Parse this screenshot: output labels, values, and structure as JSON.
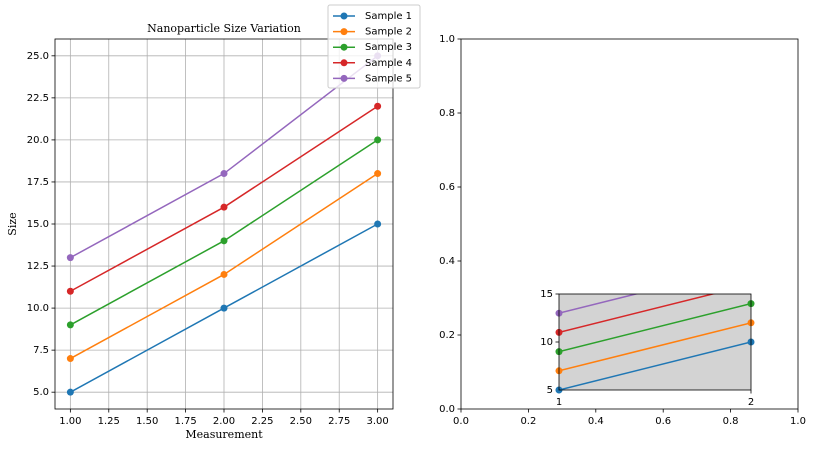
{
  "chart_data": [
    {
      "type": "line",
      "title": "Nanoparticle Size Variation",
      "x_label": "Measurement",
      "y_label": "Size",
      "x": [
        1,
        2,
        3
      ],
      "series": [
        {
          "name": "Sample 1",
          "color": "#1f77b4",
          "values": [
            5,
            10,
            15
          ]
        },
        {
          "name": "Sample 2",
          "color": "#ff7f0e",
          "values": [
            7,
            12,
            18
          ]
        },
        {
          "name": "Sample 3",
          "color": "#2ca02c",
          "values": [
            9,
            14,
            20
          ]
        },
        {
          "name": "Sample 4",
          "color": "#d62728",
          "values": [
            11,
            16,
            22
          ]
        },
        {
          "name": "Sample 5",
          "color": "#9467bd",
          "values": [
            13,
            18,
            25
          ]
        }
      ],
      "xlim": [
        0.9,
        3.1
      ],
      "xticks": [
        {
          "value": 1,
          "label": "1.00"
        },
        {
          "value": 1.25,
          "label": "1.25"
        },
        {
          "value": 1.5,
          "label": "1.50"
        },
        {
          "value": 1.75,
          "label": "1.75"
        },
        {
          "value": 2,
          "label": "2.00"
        },
        {
          "value": 2.25,
          "label": "2.25"
        },
        {
          "value": 2.5,
          "label": "2.50"
        },
        {
          "value": 2.75,
          "label": "2.75"
        },
        {
          "value": 3,
          "label": "3.00"
        }
      ],
      "ylim": [
        4,
        26
      ],
      "yticks": [
        {
          "value": 5,
          "label": "5.0"
        },
        {
          "value": 7.5,
          "label": "7.5"
        },
        {
          "value": 10,
          "label": "10.0"
        },
        {
          "value": 12.5,
          "label": "12.5"
        },
        {
          "value": 15,
          "label": "15.0"
        },
        {
          "value": 17.5,
          "label": "17.5"
        },
        {
          "value": 20,
          "label": "20.0"
        },
        {
          "value": 22.5,
          "label": "22.5"
        },
        {
          "value": 25,
          "label": "25.0"
        }
      ],
      "grid": true
    },
    {
      "type": "line",
      "xlim": [
        0,
        1
      ],
      "xticks": [
        {
          "value": 0,
          "label": "0.0"
        },
        {
          "value": 0.2,
          "label": "0.2"
        },
        {
          "value": 0.4,
          "label": "0.4"
        },
        {
          "value": 0.6,
          "label": "0.6"
        },
        {
          "value": 0.8,
          "label": "0.8"
        },
        {
          "value": 1,
          "label": "1.0"
        }
      ],
      "ylim": [
        0,
        1
      ],
      "yticks": [
        {
          "value": 0,
          "label": "0.0"
        },
        {
          "value": 0.2,
          "label": "0.2"
        },
        {
          "value": 0.4,
          "label": "0.4"
        },
        {
          "value": 0.6,
          "label": "0.6"
        },
        {
          "value": 0.8,
          "label": "0.8"
        },
        {
          "value": 1,
          "label": "1.0"
        }
      ],
      "grid": false
    },
    {
      "type": "line",
      "background": "#d3d3d3",
      "x": [
        1,
        2
      ],
      "series": [
        {
          "color": "#1f77b4",
          "values": [
            5,
            10
          ]
        },
        {
          "color": "#ff7f0e",
          "values": [
            7,
            12
          ]
        },
        {
          "color": "#2ca02c",
          "values": [
            9,
            14
          ]
        },
        {
          "color": "#d62728",
          "values": [
            11,
            16
          ]
        },
        {
          "color": "#9467bd",
          "values": [
            13,
            18
          ]
        }
      ],
      "xlim": [
        1,
        2
      ],
      "xticks": [
        1,
        2
      ],
      "ylim": [
        5,
        15
      ],
      "yticks": [
        5,
        10,
        15
      ],
      "grid": false
    }
  ]
}
